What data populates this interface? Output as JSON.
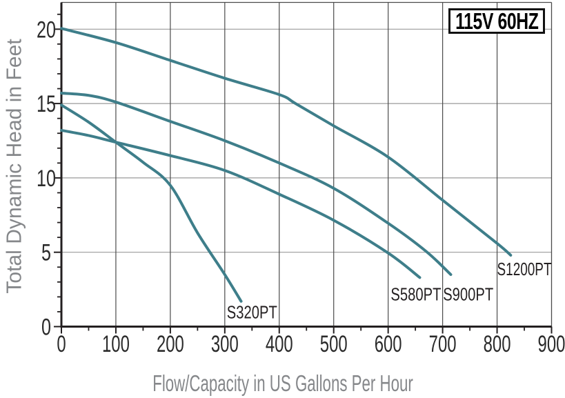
{
  "badge": {
    "label": "115V 60HZ"
  },
  "chart_data": {
    "type": "line",
    "title": "",
    "xlabel": "Flow/Capacity in US Gallons Per Hour",
    "ylabel": "Total Dynamic Head in Feet",
    "xlim": [
      0,
      900
    ],
    "ylim": [
      0,
      21.8
    ],
    "x_major_ticks": [
      0,
      100,
      200,
      300,
      400,
      500,
      600,
      700,
      800,
      900
    ],
    "x_minor_step": 50,
    "y_major_ticks": [
      0,
      5,
      10,
      15,
      20
    ],
    "y_minor_step": 1,
    "grid": true,
    "legend_position": "none",
    "series": [
      {
        "name": "S320PT",
        "points": [
          [
            0,
            14.9
          ],
          [
            50,
            13.75
          ],
          [
            100,
            12.4
          ],
          [
            150,
            11.05
          ],
          [
            200,
            9.5
          ],
          [
            250,
            6.3
          ],
          [
            300,
            3.5
          ],
          [
            330,
            1.7
          ]
        ],
        "label_at": [
          350,
          1.0
        ]
      },
      {
        "name": "S580PT",
        "points": [
          [
            0,
            13.2
          ],
          [
            50,
            12.85
          ],
          [
            100,
            12.4
          ],
          [
            200,
            11.5
          ],
          [
            300,
            10.5
          ],
          [
            400,
            8.9
          ],
          [
            500,
            7.15
          ],
          [
            600,
            4.95
          ],
          [
            658,
            3.3
          ]
        ],
        "label_at": [
          651,
          2.2
        ]
      },
      {
        "name": "S900PT",
        "points": [
          [
            0,
            15.7
          ],
          [
            50,
            15.55
          ],
          [
            100,
            15.1
          ],
          [
            200,
            13.8
          ],
          [
            300,
            12.5
          ],
          [
            400,
            11.0
          ],
          [
            500,
            9.3
          ],
          [
            600,
            6.95
          ],
          [
            670,
            5.05
          ],
          [
            715,
            3.5
          ]
        ],
        "label_at": [
          747,
          2.2
        ]
      },
      {
        "name": "S1200PT",
        "points": [
          [
            0,
            20.05
          ],
          [
            100,
            19.1
          ],
          [
            200,
            17.9
          ],
          [
            300,
            16.7
          ],
          [
            400,
            15.6
          ],
          [
            430,
            15.0
          ],
          [
            500,
            13.5
          ],
          [
            600,
            11.4
          ],
          [
            700,
            8.5
          ],
          [
            800,
            5.6
          ],
          [
            825,
            4.8
          ]
        ],
        "label_at": [
          850,
          3.9
        ]
      }
    ],
    "colors": {
      "curve": "#3E7E8A",
      "grid_vertical": "#4a4a4a",
      "grid_horizontal": "#9a9a9a",
      "axis": "#231f20",
      "tick_labels": "#2b2b2b",
      "axis_titles": "#85878a",
      "curve_labels": "#231f20",
      "badge_border": "#111111"
    }
  }
}
